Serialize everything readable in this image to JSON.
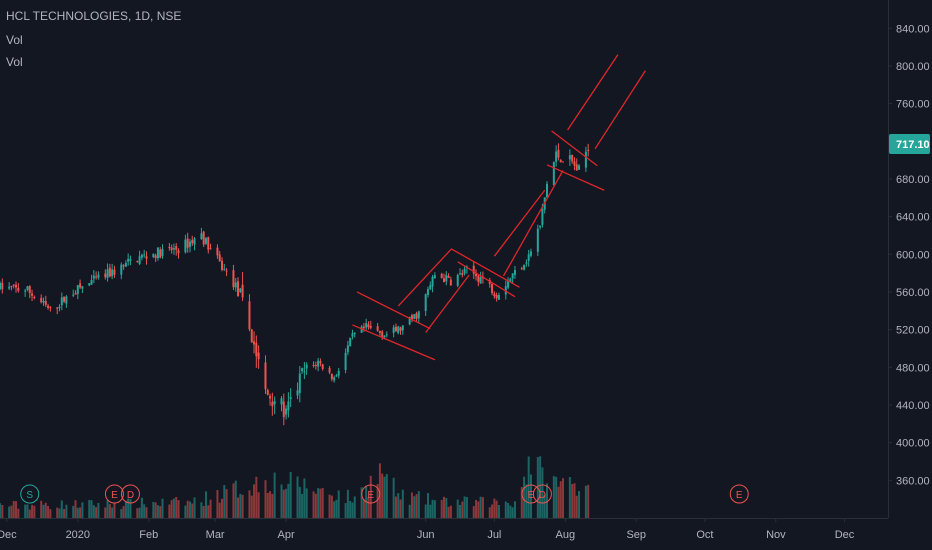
{
  "header": {
    "symbol": "HCL TECHNOLOGIES, 1D, NSE",
    "indicator_1": "Vol",
    "indicator_2": "Vol"
  },
  "colors": {
    "background": "#131722",
    "up": "#26a69a",
    "down": "#ef5350",
    "trendline": "#e0262a",
    "grid": "#1e222d",
    "text": "#b2b5be",
    "price_badge": "#26a69a"
  },
  "chart_data": {
    "type": "candlestick",
    "y_axis": {
      "ticks": [
        360,
        400,
        440,
        480,
        520,
        560,
        600,
        640,
        680,
        720,
        760,
        800,
        840
      ],
      "tick_labels": [
        "360.00",
        "400.00",
        "440.00",
        "480.00",
        "520.00",
        "560.00",
        "600.00",
        "640.00",
        "680.00",
        "720.00",
        "760.00",
        "800.00",
        "840.00"
      ],
      "range": [
        320,
        870
      ],
      "position": "right"
    },
    "x_axis": {
      "tick_labels": [
        "Dec",
        "2020",
        "Feb",
        "Mar",
        "Apr",
        "Jun",
        "Jul",
        "Aug",
        "Sep",
        "Oct",
        "Nov",
        "Dec"
      ],
      "tick_dates": [
        "2019-12-01",
        "2020-01-01",
        "2020-02-01",
        "2020-03-01",
        "2020-04-01",
        "2020-06-01",
        "2020-07-01",
        "2020-08-01",
        "2020-09-01",
        "2020-10-01",
        "2020-11-01",
        "2020-12-01"
      ],
      "range": [
        "2019-11-28",
        "2020-12-20"
      ]
    },
    "last_price": "717.10",
    "grid": false,
    "price_anchors": [
      [
        "2019-11-28",
        565
      ],
      [
        "2019-12-10",
        562
      ],
      [
        "2019-12-20",
        540
      ],
      [
        "2019-12-30",
        560
      ],
      [
        "2020-01-08",
        572
      ],
      [
        "2020-01-17",
        582
      ],
      [
        "2020-01-27",
        596
      ],
      [
        "2020-02-06",
        602
      ],
      [
        "2020-02-14",
        606
      ],
      [
        "2020-02-24",
        620
      ],
      [
        "2020-03-03",
        590
      ],
      [
        "2020-03-10",
        566
      ],
      [
        "2020-03-13",
        545
      ],
      [
        "2020-03-18",
        505
      ],
      [
        "2020-03-23",
        452
      ],
      [
        "2020-03-27",
        448
      ],
      [
        "2020-04-01",
        430
      ],
      [
        "2020-04-08",
        472
      ],
      [
        "2020-04-15",
        486
      ],
      [
        "2020-04-22",
        468
      ],
      [
        "2020-04-30",
        512
      ],
      [
        "2020-05-06",
        522
      ],
      [
        "2020-05-15",
        515
      ],
      [
        "2020-05-22",
        522
      ],
      [
        "2020-05-29",
        538
      ],
      [
        "2020-06-05",
        578
      ],
      [
        "2020-06-12",
        572
      ],
      [
        "2020-06-19",
        582
      ],
      [
        "2020-06-26",
        574
      ],
      [
        "2020-07-02",
        558
      ],
      [
        "2020-07-09",
        578
      ],
      [
        "2020-07-16",
        598
      ],
      [
        "2020-07-21",
        630
      ],
      [
        "2020-07-24",
        675
      ],
      [
        "2020-07-28",
        705
      ],
      [
        "2020-08-03",
        700
      ],
      [
        "2020-08-07",
        688
      ],
      [
        "2020-08-11",
        717
      ]
    ],
    "volume_profile": [
      [
        "2019-11-28",
        0.2
      ],
      [
        "2020-01-15",
        0.22
      ],
      [
        "2020-02-20",
        0.25
      ],
      [
        "2020-03-10",
        0.45
      ],
      [
        "2020-03-25",
        0.6
      ],
      [
        "2020-04-15",
        0.45
      ],
      [
        "2020-05-01",
        0.3
      ],
      [
        "2020-05-13",
        0.75
      ],
      [
        "2020-05-20",
        0.35
      ],
      [
        "2020-06-10",
        0.25
      ],
      [
        "2020-07-10",
        0.25
      ],
      [
        "2020-07-17",
        0.95
      ],
      [
        "2020-07-24",
        0.55
      ],
      [
        "2020-08-11",
        0.55
      ]
    ],
    "trendlines": [
      {
        "from": [
          "2020-05-02",
          560
        ],
        "to": [
          "2020-06-03",
          521
        ]
      },
      {
        "from": [
          "2020-04-30",
          525
        ],
        "to": [
          "2020-06-05",
          488
        ]
      },
      {
        "from": [
          "2020-05-20",
          545
        ],
        "to": [
          "2020-06-12",
          605
        ]
      },
      {
        "from": [
          "2020-06-01",
          517
        ],
        "to": [
          "2020-06-20",
          578
        ]
      },
      {
        "from": [
          "2020-06-12",
          606
        ],
        "to": [
          "2020-07-12",
          565
        ]
      },
      {
        "from": [
          "2020-06-15",
          592
        ],
        "to": [
          "2020-07-10",
          555
        ]
      },
      {
        "from": [
          "2020-07-01",
          598
        ],
        "to": [
          "2020-07-23",
          668
        ]
      },
      {
        "from": [
          "2020-07-05",
          577
        ],
        "to": [
          "2020-07-31",
          689
        ]
      },
      {
        "from": [
          "2020-07-26",
          731
        ],
        "to": [
          "2020-08-15",
          694
        ]
      },
      {
        "from": [
          "2020-07-24",
          695
        ],
        "to": [
          "2020-08-18",
          668
        ]
      },
      {
        "from": [
          "2020-08-02",
          732
        ],
        "to": [
          "2020-08-24",
          812
        ]
      },
      {
        "from": [
          "2020-08-14",
          712
        ],
        "to": [
          "2020-09-05",
          795
        ]
      }
    ],
    "events": [
      {
        "label": "S",
        "date": "2019-12-11"
      },
      {
        "label": "E",
        "date": "2020-01-17"
      },
      {
        "label": "D",
        "date": "2020-01-24"
      },
      {
        "label": "E",
        "date": "2020-05-08"
      },
      {
        "label": "E",
        "date": "2020-07-17"
      },
      {
        "label": "D",
        "date": "2020-07-22"
      },
      {
        "label": "E",
        "date": "2020-10-16"
      }
    ]
  }
}
